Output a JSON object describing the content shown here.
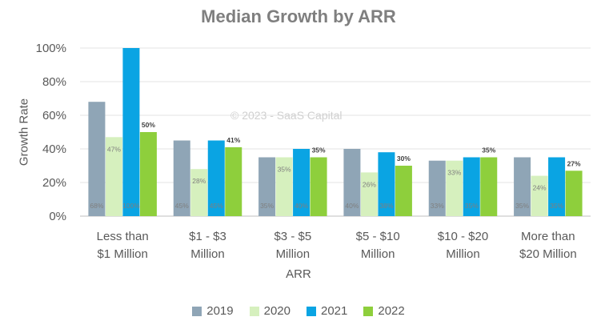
{
  "chart_data": {
    "type": "bar",
    "title": "Median Growth by ARR",
    "watermark": "© 2023 - SaaS Capital",
    "xlabel": "ARR",
    "ylabel": "Growth Rate",
    "ylim": [
      0,
      100
    ],
    "yticks": [
      "0%",
      "20%",
      "40%",
      "60%",
      "80%",
      "100%"
    ],
    "categories": [
      [
        "Less than",
        "$1 Million"
      ],
      [
        "$1 - $3",
        "Million"
      ],
      [
        "$3 - $5",
        "Million"
      ],
      [
        "$5 - $10",
        "Million"
      ],
      [
        "$10 - $20",
        "Million"
      ],
      [
        "More than",
        "$20 Million"
      ]
    ],
    "series": [
      {
        "name": "2019",
        "color": "#8fa5b6",
        "values": [
          68,
          45,
          35,
          40,
          33,
          35
        ],
        "labels": [
          "68%",
          "45%",
          "35%",
          "40%",
          "33%",
          "35%"
        ],
        "label_position": "base"
      },
      {
        "name": "2020",
        "color": "#d6f0be",
        "values": [
          47,
          28,
          35,
          26,
          33,
          24
        ],
        "labels": [
          "47%",
          "28%",
          "35%",
          "26%",
          "33%",
          "24%"
        ],
        "label_position": "inner-top"
      },
      {
        "name": "2021",
        "color": "#0aa4e3",
        "values": [
          100,
          45,
          40,
          38,
          35,
          35
        ],
        "labels": [
          "100%",
          "45%",
          "40%",
          "38%",
          "35%",
          "35%"
        ],
        "label_position": "base"
      },
      {
        "name": "2022",
        "color": "#8ecf3c",
        "values": [
          50,
          41,
          35,
          30,
          35,
          27
        ],
        "labels": [
          "50%",
          "41%",
          "35%",
          "30%",
          "35%",
          "27%"
        ],
        "label_position": "above"
      }
    ],
    "grid": true,
    "legend": "bottom"
  }
}
